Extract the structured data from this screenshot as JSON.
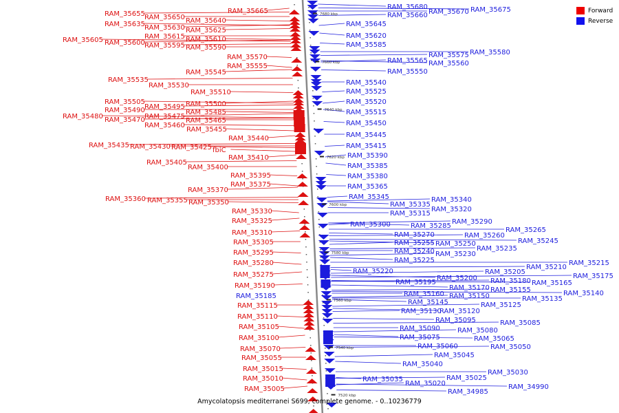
{
  "legend": {
    "forward_label": "Forward",
    "reverse_label": "Reverse",
    "forward_color": "#ee0000",
    "reverse_color": "#1111ee"
  },
  "caption": "Amycolatopsis mediterranei S699, complete genome. - 0..10236779",
  "colors": {
    "forward": "#dd1111",
    "reverse": "#1c1cdd",
    "axis": "#888888"
  },
  "kbp_marks": [
    "7680 kbp",
    "7660 kbp",
    "7640 kbp",
    "7620 kbp",
    "7600 kbp",
    "7580 kbp",
    "7560 kbp",
    "7540 kbp",
    "7520 kbp"
  ],
  "forward_labels": [
    "RAM_35665",
    "RAM_35655",
    "RAM_35650",
    "RAM_35640",
    "RAM_35635",
    "RAM_35630",
    "RAM_35625",
    "RAM_35615",
    "RAM_35610",
    "RAM_35605",
    "RAM_35600",
    "RAM_35595",
    "RAM_35590",
    "RAM_35570",
    "RAM_35555",
    "RAM_35545",
    "RAM_35535",
    "RAM_35530",
    "RAM_35510",
    "RAM_35505",
    "RAM_35500",
    "RAM_35495",
    "RAM_35490",
    "RAM_35485",
    "RAM_35480",
    "RAM_35475",
    "RAM_35470",
    "RAM_35465",
    "RAM_35460",
    "RAM_35455",
    "RAM_35440",
    "RAM_35435",
    "RAM_35430",
    "RAM_35425",
    "fbiC",
    "RAM_35410",
    "RAM_35405",
    "RAM_35400",
    "RAM_35395",
    "RAM_35375",
    "RAM_35370",
    "RAM_35360",
    "RAM_35355",
    "RAM_35350",
    "RAM_35330",
    "RAM_35325",
    "RAM_35310",
    "RAM_35305",
    "RAM_35295",
    "RAM_35280",
    "RAM_35275",
    "RAM_35190",
    "RAM_35115",
    "RAM_35110",
    "RAM_35105",
    "RAM_35100",
    "RAM_35070",
    "RAM_35055",
    "RAM_35015",
    "RAM_35010",
    "RAM_35005"
  ],
  "reverse_labels": [
    "RAM_35680",
    "RAM_35675",
    "RAM_35670",
    "RAM_35660",
    "RAM_35645",
    "RAM_35620",
    "RAM_35585",
    "RAM_35580",
    "RAM_35575",
    "RAM_35565",
    "RAM_35560",
    "RAM_35550",
    "RAM_35540",
    "RAM_35525",
    "RAM_35520",
    "RAM_35515",
    "RAM_35450",
    "RAM_35445",
    "RAM_35415",
    "RAM_35390",
    "RAM_35385",
    "RAM_35380",
    "RAM_35365",
    "RAM_35345",
    "RAM_35340",
    "RAM_35335",
    "RAM_35320",
    "RAM_35315",
    "RAM_35300",
    "RAM_35290",
    "RAM_35285",
    "RAM_35270",
    "RAM_35265",
    "RAM_35260",
    "RAM_35255",
    "RAM_35250",
    "RAM_35245",
    "RAM_35240",
    "RAM_35235",
    "RAM_35230",
    "RAM_35225",
    "RAM_35220",
    "RAM_35215",
    "RAM_35210",
    "RAM_35205",
    "RAM_35200",
    "RAM_35195",
    "RAM_35185",
    "RAM_35180",
    "RAM_35175",
    "RAM_35170",
    "RAM_35165",
    "RAM_35160",
    "RAM_35155",
    "RAM_35150",
    "RAM_35145",
    "RAM_35140",
    "RAM_35135",
    "RAM_35130",
    "RAM_35125",
    "RAM_35120",
    "RAM_35095",
    "RAM_35090",
    "RAM_35085",
    "RAM_35080",
    "RAM_35075",
    "RAM_35065",
    "RAM_35060",
    "RAM_35050",
    "RAM_35045",
    "RAM_35040",
    "RAM_35035",
    "RAM_35030",
    "RAM_35025",
    "RAM_35020",
    "RAM_34990",
    "RAM_34985"
  ]
}
